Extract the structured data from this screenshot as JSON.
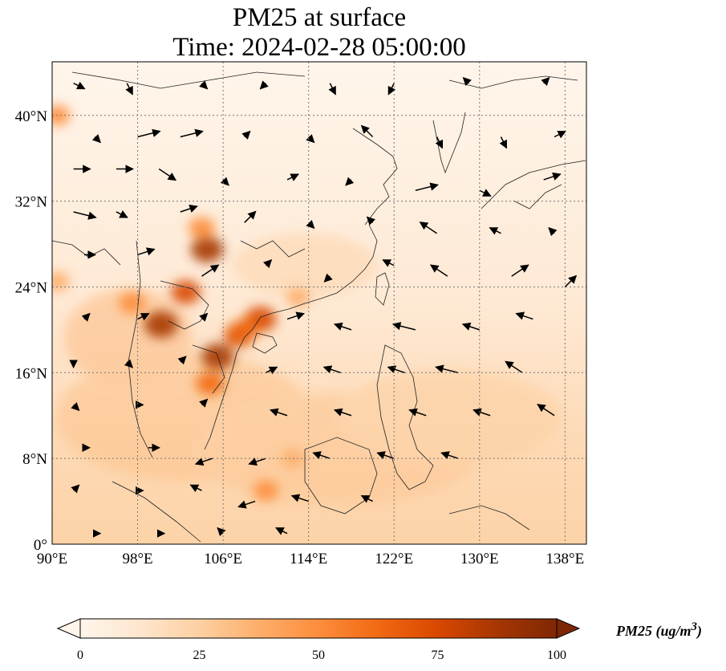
{
  "title": {
    "line1": "PM25 at surface",
    "line2": "Time: 2024-02-28 05:00:00"
  },
  "map": {
    "lon_range": [
      90,
      140
    ],
    "lat_range": [
      0,
      45
    ],
    "x_ticks": [
      "90°E",
      "98°E",
      "106°E",
      "114°E",
      "122°E",
      "130°E",
      "138°E"
    ],
    "y_ticks": [
      "0°",
      "8°N",
      "16°N",
      "24°N",
      "32°N",
      "40°N"
    ],
    "x_tick_values": [
      90,
      98,
      106,
      114,
      122,
      130,
      138
    ],
    "y_tick_values": [
      0,
      8,
      16,
      24,
      32,
      40
    ],
    "gridlines": true,
    "hotspots": [
      {
        "lon": 104.5,
        "lat": 27.5,
        "value": 85
      },
      {
        "lon": 104.0,
        "lat": 29.5,
        "value": 55
      },
      {
        "lon": 102.5,
        "lat": 23.5,
        "value": 70
      },
      {
        "lon": 100.2,
        "lat": 20.5,
        "value": 90
      },
      {
        "lon": 97.5,
        "lat": 22.5,
        "value": 55
      },
      {
        "lon": 105.5,
        "lat": 17.5,
        "value": 85
      },
      {
        "lon": 104.8,
        "lat": 15.0,
        "value": 65
      },
      {
        "lon": 107.5,
        "lat": 19.5,
        "value": 70
      },
      {
        "lon": 109.5,
        "lat": 21.0,
        "value": 80
      },
      {
        "lon": 108.0,
        "lat": 20.0,
        "value": 60
      },
      {
        "lon": 113.0,
        "lat": 23.0,
        "value": 40
      },
      {
        "lon": 90.5,
        "lat": 40.0,
        "value": 45
      },
      {
        "lon": 90.5,
        "lat": 24.5,
        "value": 40
      },
      {
        "lon": 110.0,
        "lat": 5.0,
        "value": 45
      },
      {
        "lon": 112.5,
        "lat": 8.0,
        "value": 35
      }
    ],
    "wind_vectors": [
      {
        "lon": 92,
        "lat": 43,
        "u": 2,
        "v": -1
      },
      {
        "lon": 97,
        "lat": 43,
        "u": 1,
        "v": -2
      },
      {
        "lon": 104,
        "lat": 43,
        "u": 1,
        "v": -1
      },
      {
        "lon": 110,
        "lat": 43,
        "u": -1,
        "v": -1
      },
      {
        "lon": 116,
        "lat": 43,
        "u": 1,
        "v": -2
      },
      {
        "lon": 122,
        "lat": 43,
        "u": -1,
        "v": -2
      },
      {
        "lon": 129,
        "lat": 43,
        "u": -1,
        "v": 1
      },
      {
        "lon": 136,
        "lat": 43,
        "u": 1,
        "v": 1
      },
      {
        "lon": 94,
        "lat": 38,
        "u": 1,
        "v": -1
      },
      {
        "lon": 98,
        "lat": 38,
        "u": 4,
        "v": 1
      },
      {
        "lon": 102,
        "lat": 38,
        "u": 4,
        "v": 1
      },
      {
        "lon": 108,
        "lat": 38,
        "u": 1,
        "v": 1
      },
      {
        "lon": 114,
        "lat": 38,
        "u": 1,
        "v": -1
      },
      {
        "lon": 120,
        "lat": 38,
        "u": -2,
        "v": 2
      },
      {
        "lon": 126,
        "lat": 38,
        "u": 1,
        "v": -2
      },
      {
        "lon": 132,
        "lat": 38,
        "u": 1,
        "v": -2
      },
      {
        "lon": 137,
        "lat": 38,
        "u": 2,
        "v": 1
      },
      {
        "lon": 92,
        "lat": 35,
        "u": 3,
        "v": 0
      },
      {
        "lon": 96,
        "lat": 35,
        "u": 3,
        "v": 0
      },
      {
        "lon": 100,
        "lat": 35,
        "u": 3,
        "v": -2
      },
      {
        "lon": 106,
        "lat": 34,
        "u": 1,
        "v": -1
      },
      {
        "lon": 112,
        "lat": 34,
        "u": 2,
        "v": 1
      },
      {
        "lon": 118,
        "lat": 34,
        "u": -1,
        "v": -1
      },
      {
        "lon": 124,
        "lat": 33,
        "u": 4,
        "v": 1
      },
      {
        "lon": 130,
        "lat": 33,
        "u": 2,
        "v": -1
      },
      {
        "lon": 136,
        "lat": 34,
        "u": 3,
        "v": 1
      },
      {
        "lon": 92,
        "lat": 31,
        "u": 4,
        "v": -1
      },
      {
        "lon": 96,
        "lat": 31,
        "u": 2,
        "v": -1
      },
      {
        "lon": 102,
        "lat": 31,
        "u": 3,
        "v": 1
      },
      {
        "lon": 108,
        "lat": 30,
        "u": 2,
        "v": 2
      },
      {
        "lon": 114,
        "lat": 30,
        "u": 1,
        "v": -1
      },
      {
        "lon": 120,
        "lat": 30,
        "u": -1,
        "v": 1
      },
      {
        "lon": 126,
        "lat": 29,
        "u": -3,
        "v": 2
      },
      {
        "lon": 132,
        "lat": 29,
        "u": -2,
        "v": 1
      },
      {
        "lon": 137,
        "lat": 29,
        "u": -1,
        "v": 1
      },
      {
        "lon": 93,
        "lat": 27,
        "u": 2,
        "v": 0
      },
      {
        "lon": 98,
        "lat": 27,
        "u": 3,
        "v": 1
      },
      {
        "lon": 104,
        "lat": 25,
        "u": 3,
        "v": 2
      },
      {
        "lon": 110,
        "lat": 26,
        "u": 1,
        "v": 1
      },
      {
        "lon": 116,
        "lat": 25,
        "u": -1,
        "v": -1
      },
      {
        "lon": 122,
        "lat": 26,
        "u": -2,
        "v": 1
      },
      {
        "lon": 127,
        "lat": 25,
        "u": -3,
        "v": 2
      },
      {
        "lon": 133,
        "lat": 25,
        "u": 3,
        "v": 2
      },
      {
        "lon": 138,
        "lat": 24,
        "u": 2,
        "v": 2
      },
      {
        "lon": 93,
        "lat": 21,
        "u": 1,
        "v": 1
      },
      {
        "lon": 98,
        "lat": 21,
        "u": 2,
        "v": 1
      },
      {
        "lon": 104,
        "lat": 21,
        "u": 1,
        "v": 1
      },
      {
        "lon": 112,
        "lat": 21,
        "u": 3,
        "v": 1
      },
      {
        "lon": 118,
        "lat": 20,
        "u": -3,
        "v": 1
      },
      {
        "lon": 124,
        "lat": 20,
        "u": -4,
        "v": 1
      },
      {
        "lon": 130,
        "lat": 20,
        "u": -3,
        "v": 1
      },
      {
        "lon": 135,
        "lat": 21,
        "u": -3,
        "v": 1
      },
      {
        "lon": 92,
        "lat": 17,
        "u": 0,
        "v": -1
      },
      {
        "lon": 97,
        "lat": 17,
        "u": 1,
        "v": -1
      },
      {
        "lon": 102,
        "lat": 17,
        "u": 1,
        "v": 1
      },
      {
        "lon": 110,
        "lat": 16,
        "u": 2,
        "v": 1
      },
      {
        "lon": 117,
        "lat": 16,
        "u": -3,
        "v": 1
      },
      {
        "lon": 123,
        "lat": 16,
        "u": -3,
        "v": 1
      },
      {
        "lon": 128,
        "lat": 16,
        "u": -4,
        "v": 1
      },
      {
        "lon": 134,
        "lat": 16,
        "u": -3,
        "v": 2
      },
      {
        "lon": 92,
        "lat": 13,
        "u": 1,
        "v": -1
      },
      {
        "lon": 98,
        "lat": 13,
        "u": 1,
        "v": 0
      },
      {
        "lon": 104,
        "lat": 13,
        "u": 1,
        "v": 1
      },
      {
        "lon": 112,
        "lat": 12,
        "u": -3,
        "v": 1
      },
      {
        "lon": 118,
        "lat": 12,
        "u": -3,
        "v": 1
      },
      {
        "lon": 125,
        "lat": 12,
        "u": -3,
        "v": 1
      },
      {
        "lon": 131,
        "lat": 12,
        "u": -3,
        "v": 1
      },
      {
        "lon": 137,
        "lat": 12,
        "u": -3,
        "v": 2
      },
      {
        "lon": 93,
        "lat": 9,
        "u": 1,
        "v": 0
      },
      {
        "lon": 99,
        "lat": 9,
        "u": 2,
        "v": 0
      },
      {
        "lon": 105,
        "lat": 8,
        "u": -3,
        "v": -1
      },
      {
        "lon": 110,
        "lat": 8,
        "u": -3,
        "v": -1
      },
      {
        "lon": 116,
        "lat": 8,
        "u": -3,
        "v": 1
      },
      {
        "lon": 122,
        "lat": 8,
        "u": -3,
        "v": 1
      },
      {
        "lon": 128,
        "lat": 8,
        "u": -3,
        "v": 1
      },
      {
        "lon": 92,
        "lat": 5,
        "u": 1,
        "v": 1
      },
      {
        "lon": 98,
        "lat": 5,
        "u": 1,
        "v": 0
      },
      {
        "lon": 104,
        "lat": 5,
        "u": -2,
        "v": 1
      },
      {
        "lon": 109,
        "lat": 4,
        "u": -3,
        "v": -1
      },
      {
        "lon": 114,
        "lat": 4,
        "u": -3,
        "v": 1
      },
      {
        "lon": 120,
        "lat": 4,
        "u": -2,
        "v": 1
      },
      {
        "lon": 94,
        "lat": 1,
        "u": 1,
        "v": 0
      },
      {
        "lon": 100,
        "lat": 1,
        "u": 1,
        "v": 0
      },
      {
        "lon": 106,
        "lat": 1,
        "u": -1,
        "v": 1
      },
      {
        "lon": 112,
        "lat": 1,
        "u": -2,
        "v": 1
      }
    ]
  },
  "colorbar": {
    "title": "PM25 (ug/m",
    "title_sup": "3",
    "title_close": ")",
    "ticks": [
      "0",
      "25",
      "50",
      "75",
      "100"
    ],
    "tick_values": [
      0,
      25,
      50,
      75,
      100
    ],
    "min": 0,
    "max": 100,
    "colors": [
      "#fff5eb",
      "#fee6ce",
      "#fdd0a2",
      "#fdae6b",
      "#fd8d3c",
      "#f16913",
      "#d94801",
      "#a63603",
      "#7f2704"
    ],
    "extend": "both"
  }
}
